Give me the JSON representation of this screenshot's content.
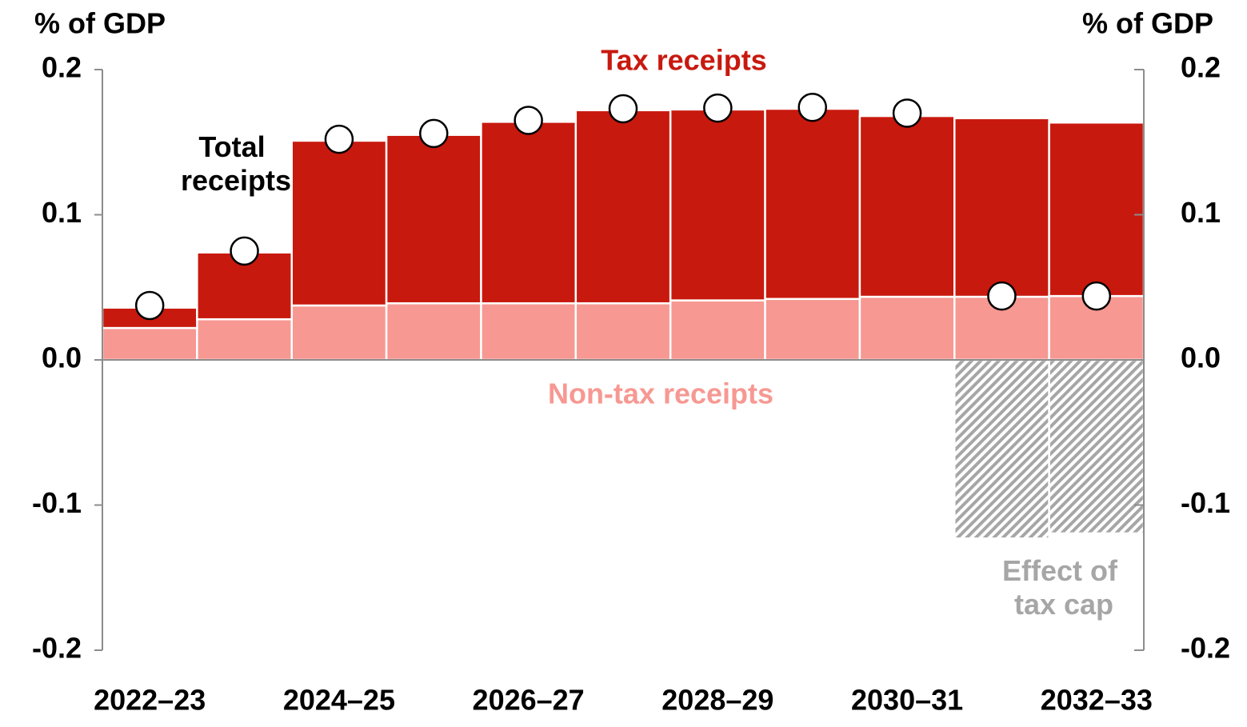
{
  "chart_data": {
    "type": "bar",
    "stacked": true,
    "y_label": "% of GDP",
    "y2_label": "% of GDP",
    "categories": [
      "2022–23",
      null,
      "2024–25",
      null,
      "2026–27",
      null,
      "2028–29",
      null,
      "2030–31",
      null,
      "2032–33"
    ],
    "series": [
      {
        "name": "Non-tax receipts",
        "color": "#f79892",
        "values": [
          0.022,
          0.028,
          0.0375,
          0.039,
          0.039,
          0.039,
          0.041,
          0.042,
          0.0435,
          0.0435,
          0.044
        ]
      },
      {
        "name": "Tax receipts",
        "color": "#c8190e",
        "values": [
          0.014,
          0.046,
          0.1135,
          0.116,
          0.125,
          0.133,
          0.1315,
          0.131,
          0.1245,
          0.123,
          0.1195
        ]
      },
      {
        "name": "Effect of tax cap",
        "color": "#a6a6a6",
        "pattern": "hatch",
        "values": [
          null,
          null,
          null,
          null,
          null,
          null,
          null,
          null,
          null,
          -0.123,
          -0.1195
        ]
      },
      {
        "name": "Total receipts",
        "type": "scatter",
        "color": "#ffffff",
        "values": [
          0.0375,
          0.075,
          0.152,
          0.156,
          0.165,
          0.173,
          0.1735,
          0.174,
          0.17,
          0.044,
          0.044
        ]
      }
    ],
    "ylim": [
      -0.2,
      0.2
    ],
    "yticks": [
      -0.2,
      -0.1,
      {
        "value": 0,
        "label": "0.0"
      },
      0.1,
      0.2
    ],
    "y2lim": [
      -0.2,
      0.2
    ],
    "y2ticks": [
      -0.2,
      -0.1,
      {
        "value": 0,
        "label": "0.0"
      },
      0.1,
      0.2
    ]
  }
}
